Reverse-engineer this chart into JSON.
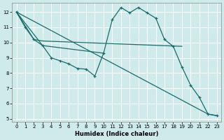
{
  "xlabel": "Humidex (Indice chaleur)",
  "bg_color": "#ceeaea",
  "grid_color": "#ffffff",
  "line_color": "#1a6b6b",
  "xlim": [
    -0.5,
    23.5
  ],
  "ylim": [
    4.8,
    12.6
  ],
  "xticks": [
    0,
    1,
    2,
    3,
    4,
    5,
    6,
    7,
    8,
    9,
    10,
    11,
    12,
    13,
    14,
    15,
    16,
    17,
    18,
    19,
    20,
    21,
    22,
    23
  ],
  "yticks": [
    5,
    6,
    7,
    8,
    9,
    10,
    11,
    12
  ],
  "line_main": {
    "x": [
      0,
      1,
      2,
      3,
      4,
      5,
      6,
      7,
      8,
      9,
      10,
      11,
      12,
      13,
      14,
      15,
      16,
      17,
      18,
      19,
      20,
      21,
      22,
      23
    ],
    "y": [
      12,
      11,
      10.2,
      9.8,
      9.0,
      8.8,
      8.6,
      8.3,
      8.25,
      7.8,
      9.3,
      11.5,
      12.3,
      11.95,
      12.3,
      11.95,
      11.6,
      10.2,
      9.75,
      8.4,
      7.2,
      6.4,
      5.3,
      5.2
    ]
  },
  "line_flat": {
    "x": [
      0,
      2,
      3,
      19
    ],
    "y": [
      12,
      10.2,
      10.1,
      9.75
    ]
  },
  "line_diag_long": {
    "x": [
      0,
      22,
      23
    ],
    "y": [
      12,
      5.3,
      5.2
    ]
  },
  "line_short": {
    "x": [
      0,
      3,
      10
    ],
    "y": [
      12,
      9.8,
      9.3
    ]
  }
}
